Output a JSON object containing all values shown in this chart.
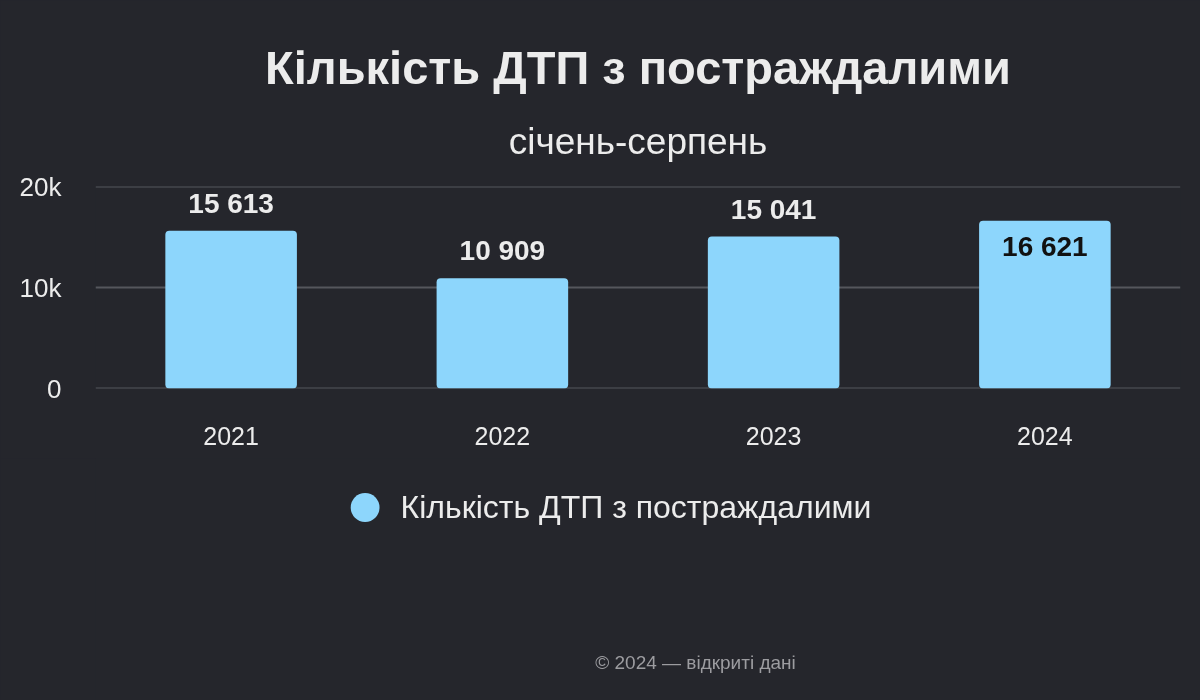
{
  "chart_data": {
    "type": "bar",
    "title": "Кількість ДТП з постраждалими",
    "subtitle": "січень-серпень",
    "categories": [
      "2021",
      "2022",
      "2023",
      "2024"
    ],
    "series": [
      {
        "name": "Кількість ДТП з постраждалими",
        "color": "#8dd6fc",
        "values": [
          15613,
          10909,
          15041,
          16621
        ],
        "value_labels": [
          "15 613",
          "10 909",
          "15 041",
          "16 621"
        ]
      }
    ],
    "ylim": [
      0,
      20000
    ],
    "yticks": [
      0,
      {
        "value": 10000,
        "label": "10k"
      },
      {
        "value": 20000,
        "label": "20k"
      }
    ],
    "grid": "y",
    "legend": "bottom",
    "annotations": [
      "© 2024 — відкриті дані"
    ]
  }
}
